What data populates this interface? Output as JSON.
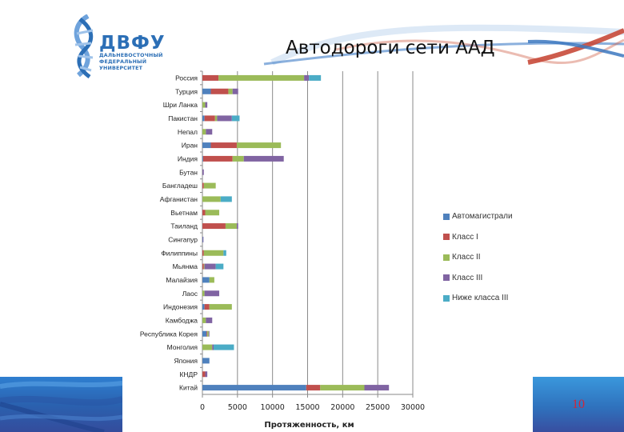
{
  "header": {
    "logo": {
      "abbr": "ДВФУ",
      "line1": "ДАЛЬНЕВОСТОЧНЫЙ",
      "line2": "ФЕДЕРАЛЬНЫЙ",
      "line3": "УНИВЕРСИТЕТ"
    },
    "title": "Автодороги сети ААД"
  },
  "footer": {
    "page_number": "10"
  },
  "colors": {
    "Автомагистрали": "#4f81bd",
    "Класс I": "#c0504d",
    "Класс II": "#9bbb59",
    "Класс III": "#8064a2",
    "Ниже класса III": "#4bacc6",
    "page_number": "#d0263a"
  },
  "chart_data": {
    "type": "bar",
    "orientation": "horizontal",
    "stacked": true,
    "title": "Автодороги сети ААД",
    "xlabel": "Протяженность, км",
    "ylabel": "",
    "xlim": [
      0,
      30000
    ],
    "xticks": [
      0,
      5000,
      10000,
      15000,
      20000,
      25000,
      30000
    ],
    "grid": "vertical major gridlines",
    "legend_position": "right",
    "categories": [
      "Россия",
      "Турция",
      "Шри Ланка",
      "Пакистан",
      "Непал",
      "Иран",
      "Индия",
      "Бутан",
      "Бангладеш",
      "Афганистан",
      "Вьетнам",
      "Таиланд",
      "Сингапур",
      "Филиппины",
      "Мьянма",
      "Малайзия",
      "Лаос",
      "Индонезия",
      "Камбоджа",
      "Республика Корея",
      "Монголия",
      "Япония",
      "КНДР",
      "Китай"
    ],
    "series": [
      {
        "name": "Автомагистрали",
        "values": [
          0,
          1200,
          0,
          300,
          0,
          1200,
          100,
          0,
          0,
          0,
          0,
          0,
          50,
          0,
          0,
          1000,
          0,
          300,
          0,
          600,
          0,
          1000,
          0,
          14800
        ]
      },
      {
        "name": "Класс I",
        "values": [
          2300,
          2500,
          0,
          1500,
          0,
          3700,
          4200,
          0,
          200,
          0,
          400,
          3300,
          0,
          200,
          200,
          0,
          0,
          700,
          0,
          100,
          0,
          0,
          400,
          2000
        ]
      },
      {
        "name": "Класс II",
        "values": [
          12200,
          600,
          400,
          300,
          500,
          6300,
          1600,
          0,
          1700,
          2600,
          2000,
          1600,
          0,
          2800,
          100,
          700,
          300,
          3200,
          500,
          200,
          1400,
          0,
          0,
          6300
        ]
      },
      {
        "name": "Класс III",
        "values": [
          700,
          800,
          300,
          2100,
          900,
          0,
          5700,
          200,
          0,
          0,
          0,
          200,
          100,
          0,
          1600,
          0,
          2100,
          0,
          900,
          100,
          200,
          0,
          300,
          3500
        ]
      },
      {
        "name": "Ниже класса III",
        "values": [
          1700,
          0,
          0,
          1100,
          0,
          0,
          0,
          0,
          0,
          1600,
          0,
          0,
          0,
          400,
          1100,
          0,
          0,
          0,
          0,
          0,
          2900,
          0,
          0,
          0
        ]
      }
    ]
  }
}
